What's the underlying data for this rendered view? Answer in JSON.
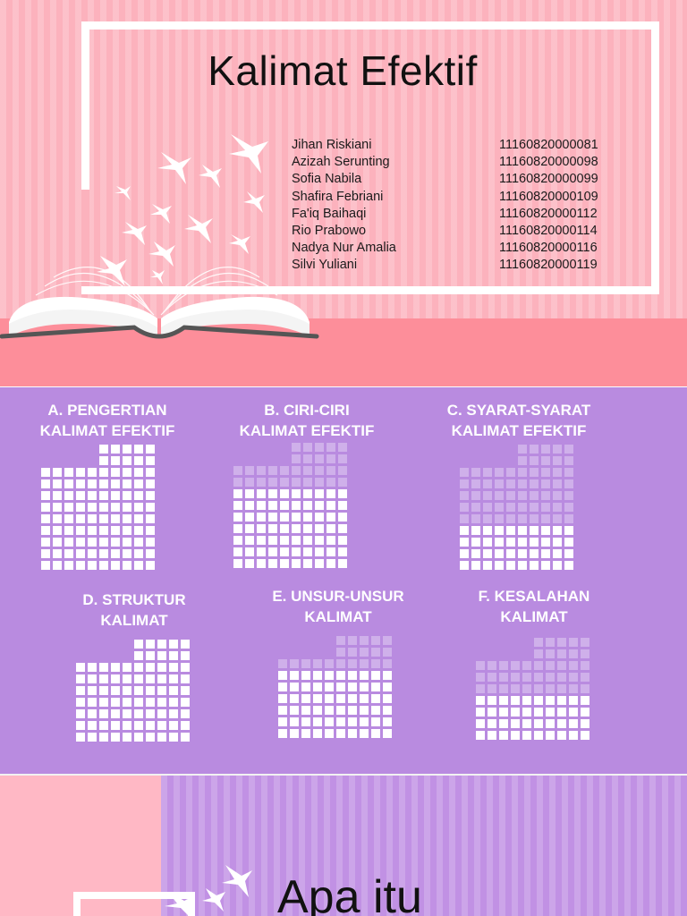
{
  "slide1": {
    "title": "Kalimat Efektif",
    "members": [
      {
        "name": "Jihan Riskiani",
        "nim": "11160820000081"
      },
      {
        "name": "Azizah Serunting",
        "nim": "11160820000098"
      },
      {
        "name": "Sofia Nabila",
        "nim": "11160820000099"
      },
      {
        "name": "Shafira Febriani",
        "nim": "11160820000109"
      },
      {
        "name": "Fa'iq Baihaqi",
        "nim": "11160820000112"
      },
      {
        "name": "Rio Prabowo",
        "nim": "11160820000114"
      },
      {
        "name": "Nadya Nur Amalia",
        "nim": "11160820000116"
      },
      {
        "name": "Silvi Yuliani",
        "nim": "11160820000119"
      }
    ]
  },
  "slide2": {
    "topics": [
      {
        "line1": "A. PENGERTIAN",
        "line2": "KALIMAT EFEKTIF"
      },
      {
        "line1": "B. CIRI-CIRI",
        "line2": "KALIMAT EFEKTIF"
      },
      {
        "line1": "C. SYARAT-SYARAT",
        "line2": "KALIMAT EFEKTIF"
      },
      {
        "line1": "D. STRUKTUR",
        "line2": "KALIMAT"
      },
      {
        "line1": "E. UNSUR-UNSUR",
        "line2": "KALIMAT"
      },
      {
        "line1": "F. KESALAHAN",
        "line2": "KALIMAT"
      }
    ]
  },
  "slide3": {
    "heading": "Apa itu"
  },
  "colors": {
    "pink_bg": "#fcb2bd",
    "pink_floor": "#fd8e9a",
    "purple_bg": "#b98be0",
    "white": "#ffffff"
  }
}
